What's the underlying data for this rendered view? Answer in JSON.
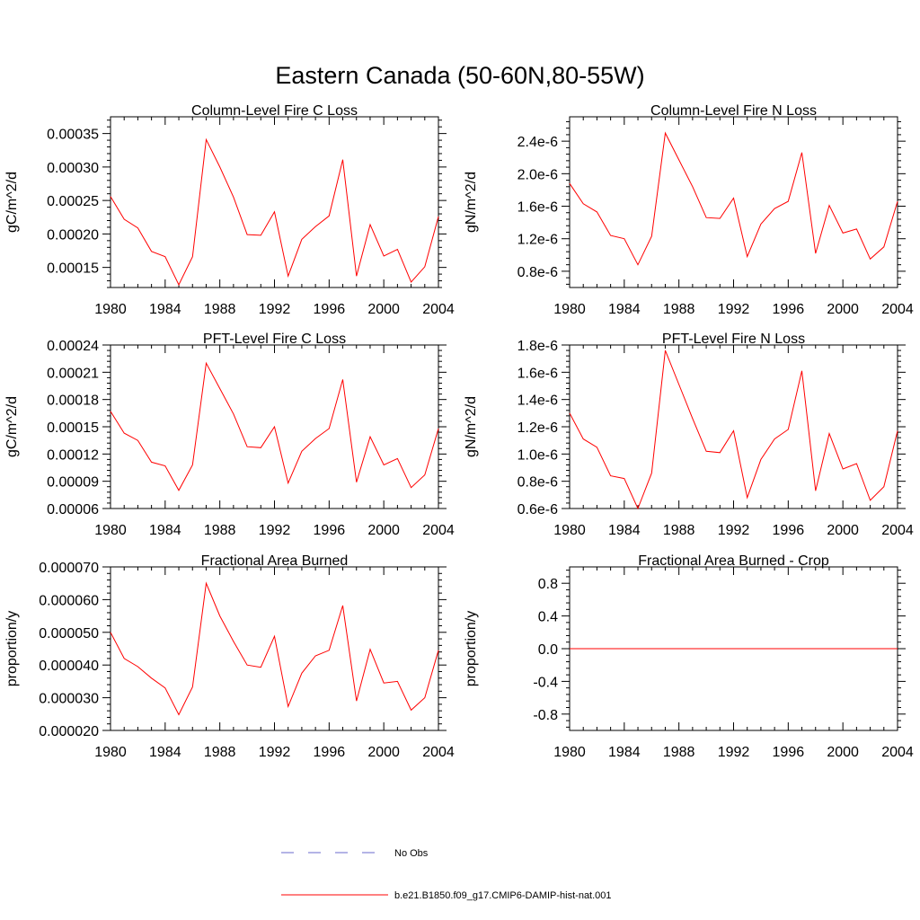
{
  "figure": {
    "title": "Eastern Canada (50-60N,80-55W)"
  },
  "legend": [
    {
      "label": "No Obs",
      "color": "#6a6acd",
      "dash": "dashed"
    },
    {
      "label": "b.e21.B1850.f09_g17.CMIP6-DAMIP-hist-nat.001",
      "color": "#ff0000",
      "dash": "solid"
    }
  ],
  "chart_data": [
    {
      "type": "line",
      "title": "Column-Level Fire C Loss",
      "ylabel": "gC/m^2/d",
      "xlim": [
        1980,
        2004
      ],
      "ylim": [
        0.00012,
        0.000375
      ],
      "xticks": [
        1980,
        1984,
        1988,
        1992,
        1996,
        2000,
        2004
      ],
      "yticks": [
        0.00015,
        0.0002,
        0.00025,
        0.0003,
        0.00035
      ],
      "ytick_labels": [
        "0.00015",
        "0.00020",
        "0.00025",
        "0.00030",
        "0.00035"
      ],
      "x": [
        1980,
        1981,
        1982,
        1983,
        1984,
        1985,
        1986,
        1987,
        1988,
        1989,
        1990,
        1991,
        1992,
        1993,
        1994,
        1995,
        1996,
        1997,
        1998,
        1999,
        2000,
        2001,
        2002,
        2003,
        2004
      ],
      "series": [
        {
          "color": "#ff0000",
          "values": [
            0.000256,
            0.000222,
            0.000209,
            0.000174,
            0.000166,
            0.000124,
            0.000166,
            0.000341,
            0.0003,
            0.000255,
            0.000199,
            0.000198,
            0.000233,
            0.000137,
            0.000192,
            0.000211,
            0.000227,
            0.000311,
            0.000137,
            0.000214,
            0.000167,
            0.000177,
            0.000128,
            0.000151,
            0.000226
          ]
        }
      ]
    },
    {
      "type": "line",
      "title": "Column-Level Fire N Loss",
      "ylabel": "gN/m^2/d",
      "xlim": [
        1980,
        2004
      ],
      "ylim": [
        6e-07,
        2.7e-06
      ],
      "xticks": [
        1980,
        1984,
        1988,
        1992,
        1996,
        2000,
        2004
      ],
      "yticks": [
        8e-07,
        1.2e-06,
        1.6e-06,
        2e-06,
        2.4e-06
      ],
      "ytick_labels": [
        "0.8e-6",
        "1.2e-6",
        "1.6e-6",
        "2.0e-6",
        "2.4e-6"
      ],
      "x": [
        1980,
        1981,
        1982,
        1983,
        1984,
        1985,
        1986,
        1987,
        1988,
        1989,
        1990,
        1991,
        1992,
        1993,
        1994,
        1995,
        1996,
        1997,
        1998,
        1999,
        2000,
        2001,
        2002,
        2003,
        2004
      ],
      "series": [
        {
          "color": "#ff0000",
          "values": [
            1.88e-06,
            1.63e-06,
            1.53e-06,
            1.24e-06,
            1.2e-06,
            8.8e-07,
            1.23e-06,
            2.5e-06,
            2.17e-06,
            1.84e-06,
            1.46e-06,
            1.45e-06,
            1.7e-06,
            9.8e-07,
            1.38e-06,
            1.57e-06,
            1.66e-06,
            2.26e-06,
            1.02e-06,
            1.61e-06,
            1.27e-06,
            1.32e-06,
            9.5e-07,
            1.1e-06,
            1.66e-06
          ]
        }
      ]
    },
    {
      "type": "line",
      "title": "PFT-Level Fire C Loss",
      "ylabel": "gC/m^2/d",
      "xlim": [
        1980,
        2004
      ],
      "ylim": [
        6e-05,
        0.00024
      ],
      "xticks": [
        1980,
        1984,
        1988,
        1992,
        1996,
        2000,
        2004
      ],
      "yticks": [
        6e-05,
        9e-05,
        0.00012,
        0.00015,
        0.00018,
        0.00021,
        0.00024
      ],
      "ytick_labels": [
        "0.00006",
        "0.00009",
        "0.00012",
        "0.00015",
        "0.00018",
        "0.00021",
        "0.00024"
      ],
      "x": [
        1980,
        1981,
        1982,
        1983,
        1984,
        1985,
        1986,
        1987,
        1988,
        1989,
        1990,
        1991,
        1992,
        1993,
        1994,
        1995,
        1996,
        1997,
        1998,
        1999,
        2000,
        2001,
        2002,
        2003,
        2004
      ],
      "series": [
        {
          "color": "#ff0000",
          "values": [
            0.000167,
            0.000143,
            0.000135,
            0.000111,
            0.000107,
            8e-05,
            0.000108,
            0.00022,
            0.000192,
            0.000164,
            0.000128,
            0.000127,
            0.00015,
            8.8e-05,
            0.000123,
            0.000137,
            0.000148,
            0.000202,
            8.9e-05,
            0.000139,
            0.000108,
            0.000115,
            8.3e-05,
            9.7e-05,
            0.000148
          ]
        }
      ]
    },
    {
      "type": "line",
      "title": "PFT-Level Fire N Loss",
      "ylabel": "gN/m^2/d",
      "xlim": [
        1980,
        2004
      ],
      "ylim": [
        6e-07,
        1.8e-06
      ],
      "xticks": [
        1980,
        1984,
        1988,
        1992,
        1996,
        2000,
        2004
      ],
      "yticks": [
        6e-07,
        8e-07,
        1e-06,
        1.2e-06,
        1.4e-06,
        1.6e-06,
        1.8e-06
      ],
      "ytick_labels": [
        "0.6e-6",
        "0.8e-6",
        "1.0e-6",
        "1.2e-6",
        "1.4e-6",
        "1.6e-6",
        "1.8e-6"
      ],
      "x": [
        1980,
        1981,
        1982,
        1983,
        1984,
        1985,
        1986,
        1987,
        1988,
        1989,
        1990,
        1991,
        1992,
        1993,
        1994,
        1995,
        1996,
        1997,
        1998,
        1999,
        2000,
        2001,
        2002,
        2003,
        2004
      ],
      "series": [
        {
          "color": "#ff0000",
          "values": [
            1.3e-06,
            1.11e-06,
            1.05e-06,
            8.4e-07,
            8.2e-07,
            6e-07,
            8.6e-07,
            1.76e-06,
            1.51e-06,
            1.26e-06,
            1.02e-06,
            1.01e-06,
            1.17e-06,
            6.8e-07,
            9.6e-07,
            1.11e-06,
            1.18e-06,
            1.61e-06,
            7.3e-07,
            1.15e-06,
            8.9e-07,
            9.3e-07,
            6.6e-07,
            7.6e-07,
            1.17e-06
          ]
        }
      ]
    },
    {
      "type": "line",
      "title": "Fractional Area Burned",
      "ylabel": "proportion/y",
      "xlim": [
        1980,
        2004
      ],
      "ylim": [
        2e-05,
        7e-05
      ],
      "xticks": [
        1980,
        1984,
        1988,
        1992,
        1996,
        2000,
        2004
      ],
      "yticks": [
        2e-05,
        3e-05,
        4e-05,
        5e-05,
        6e-05,
        7e-05
      ],
      "ytick_labels": [
        "0.000020",
        "0.000030",
        "0.000040",
        "0.000050",
        "0.000060",
        "0.000070"
      ],
      "x": [
        1980,
        1981,
        1982,
        1983,
        1984,
        1985,
        1986,
        1987,
        1988,
        1989,
        1990,
        1991,
        1992,
        1993,
        1994,
        1995,
        1996,
        1997,
        1998,
        1999,
        2000,
        2001,
        2002,
        2003,
        2004
      ],
      "series": [
        {
          "color": "#ff0000",
          "values": [
            5e-05,
            4.2e-05,
            3.95e-05,
            3.6e-05,
            3.3e-05,
            2.48e-05,
            3.33e-05,
            6.5e-05,
            5.5e-05,
            4.72e-05,
            4e-05,
            3.93e-05,
            4.88e-05,
            2.73e-05,
            3.75e-05,
            4.28e-05,
            4.45e-05,
            5.82e-05,
            2.9e-05,
            4.48e-05,
            3.45e-05,
            3.5e-05,
            2.62e-05,
            3e-05,
            4.45e-05
          ]
        }
      ]
    },
    {
      "type": "line",
      "title": "Fractional Area Burned - Crop",
      "ylabel": "proportion/y",
      "xlim": [
        1980,
        2004
      ],
      "ylim": [
        -1.0,
        1.0
      ],
      "xticks": [
        1980,
        1984,
        1988,
        1992,
        1996,
        2000,
        2004
      ],
      "yticks": [
        -0.8,
        -0.4,
        0.0,
        0.4,
        0.8
      ],
      "ytick_labels": [
        "-0.8",
        "-0.4",
        "0.0",
        "0.4",
        "0.8"
      ],
      "x": [
        1980,
        1981,
        1982,
        1983,
        1984,
        1985,
        1986,
        1987,
        1988,
        1989,
        1990,
        1991,
        1992,
        1993,
        1994,
        1995,
        1996,
        1997,
        1998,
        1999,
        2000,
        2001,
        2002,
        2003,
        2004
      ],
      "series": [
        {
          "color": "#ff0000",
          "values": [
            0,
            0,
            0,
            0,
            0,
            0,
            0,
            0,
            0,
            0,
            0,
            0,
            0,
            0,
            0,
            0,
            0,
            0,
            0,
            0,
            0,
            0,
            0,
            0,
            0
          ]
        }
      ]
    }
  ]
}
